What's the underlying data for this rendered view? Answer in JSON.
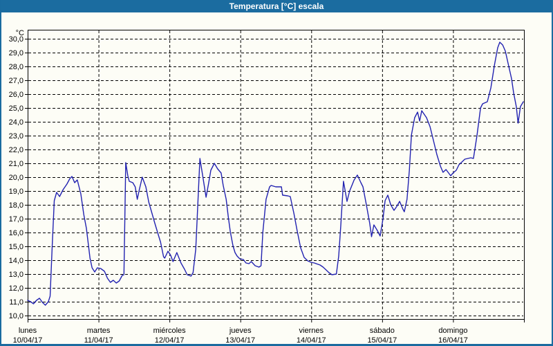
{
  "window": {
    "title": "Temperatura [°C] escala",
    "titlebar_color": "#1b6ca0",
    "frame_color": "#1a6b9f",
    "background_color": "#fdfdf6"
  },
  "chart_data": {
    "type": "line",
    "title": "Temperatura [°C] escala",
    "y_unit_label": "°C",
    "ylim": [
      10,
      30
    ],
    "y_step": 1,
    "y_ticks": [
      "30,0",
      "29,0",
      "28,0",
      "27,0",
      "26,0",
      "25,0",
      "24,0",
      "23,0",
      "22,0",
      "21,0",
      "20,0",
      "19,0",
      "18,0",
      "17,0",
      "16,0",
      "15,0",
      "14,0",
      "13,0",
      "12,0",
      "11,0",
      "10,0"
    ],
    "x_days": [
      {
        "name": "lunes",
        "date": "10/04/17"
      },
      {
        "name": "martes",
        "date": "11/04/17"
      },
      {
        "name": "miércoles",
        "date": "12/04/17"
      },
      {
        "name": "jueves",
        "date": "13/04/17"
      },
      {
        "name": "viernes",
        "date": "14/04/17"
      },
      {
        "name": "sábado",
        "date": "15/04/17"
      },
      {
        "name": "domingo",
        "date": "16/04/17"
      }
    ],
    "grid": "dashed",
    "grid_color": "#000000",
    "line_color": "#2121b0",
    "legend": "none",
    "x_axis_note": "hours since Monday 00:00, 7 days total (168 h)",
    "series": [
      {
        "name": "Temperatura",
        "points": [
          [
            0,
            11.1
          ],
          [
            1,
            11.0
          ],
          [
            2,
            10.85
          ],
          [
            3,
            11.1
          ],
          [
            4,
            11.25
          ],
          [
            5,
            10.95
          ],
          [
            6,
            10.75
          ],
          [
            7,
            11.0
          ],
          [
            7.6,
            11.4
          ],
          [
            8.3,
            15.0
          ],
          [
            9,
            18.3
          ],
          [
            9.8,
            18.9
          ],
          [
            10.8,
            18.6
          ],
          [
            12,
            19.1
          ],
          [
            13.3,
            19.5
          ],
          [
            14.3,
            19.9
          ],
          [
            15,
            20.05
          ],
          [
            15.9,
            19.6
          ],
          [
            16.8,
            19.8
          ],
          [
            18,
            18.8
          ],
          [
            19,
            17.3
          ],
          [
            19.9,
            16.3
          ],
          [
            21.1,
            14.15
          ],
          [
            21.8,
            13.45
          ],
          [
            22.7,
            13.15
          ],
          [
            23.6,
            13.45
          ],
          [
            24.7,
            13.4
          ],
          [
            26,
            13.2
          ],
          [
            27,
            12.7
          ],
          [
            28,
            12.4
          ],
          [
            29,
            12.55
          ],
          [
            30,
            12.35
          ],
          [
            31,
            12.5
          ],
          [
            32,
            12.9
          ],
          [
            32.6,
            12.95
          ],
          [
            33.2,
            21.05
          ],
          [
            33.9,
            20.1
          ],
          [
            34.4,
            19.7
          ],
          [
            35.6,
            19.6
          ],
          [
            36.4,
            19.3
          ],
          [
            37.1,
            18.4
          ],
          [
            37.7,
            19.0
          ],
          [
            38.8,
            20.0
          ],
          [
            40,
            19.3
          ],
          [
            41,
            18.2
          ],
          [
            42,
            17.45
          ],
          [
            43,
            16.7
          ],
          [
            44,
            16.0
          ],
          [
            45,
            15.3
          ],
          [
            46,
            14.25
          ],
          [
            46.4,
            14.15
          ],
          [
            47.5,
            14.65
          ],
          [
            48.4,
            14.35
          ],
          [
            49.2,
            13.9
          ],
          [
            50.5,
            14.55
          ],
          [
            51.9,
            13.8
          ],
          [
            53.1,
            13.35
          ],
          [
            54,
            12.95
          ],
          [
            55.3,
            12.85
          ],
          [
            56,
            13.1
          ],
          [
            56.9,
            14.8
          ],
          [
            58.3,
            21.35
          ],
          [
            59.1,
            20.3
          ],
          [
            60.4,
            18.55
          ],
          [
            61.2,
            19.5
          ],
          [
            62,
            20.5
          ],
          [
            63.2,
            21.0
          ],
          [
            64.3,
            20.6
          ],
          [
            65.5,
            20.3
          ],
          [
            66.2,
            19.4
          ],
          [
            67.2,
            18.4
          ],
          [
            67.9,
            17.15
          ],
          [
            68.6,
            16.05
          ],
          [
            69.5,
            15.05
          ],
          [
            70.2,
            14.55
          ],
          [
            70.9,
            14.3
          ],
          [
            71.8,
            14.1
          ],
          [
            73,
            14.05
          ],
          [
            73.9,
            13.8
          ],
          [
            74.9,
            13.75
          ],
          [
            75.7,
            13.9
          ],
          [
            77,
            13.6
          ],
          [
            78.3,
            13.5
          ],
          [
            79,
            13.6
          ],
          [
            79.6,
            16.0
          ],
          [
            80.7,
            18.4
          ],
          [
            81.9,
            19.3
          ],
          [
            82.4,
            19.4
          ],
          [
            84,
            19.3
          ],
          [
            85.9,
            19.3
          ],
          [
            86.3,
            18.7
          ],
          [
            88,
            18.65
          ],
          [
            88.9,
            18.6
          ],
          [
            90.1,
            17.4
          ],
          [
            91.2,
            16.15
          ],
          [
            92.4,
            14.9
          ],
          [
            93.6,
            14.2
          ],
          [
            94.8,
            13.95
          ],
          [
            95.9,
            13.85
          ],
          [
            97,
            13.8
          ],
          [
            99,
            13.65
          ],
          [
            100,
            13.5
          ],
          [
            101,
            13.3
          ],
          [
            102,
            13.1
          ],
          [
            103,
            12.95
          ],
          [
            104.5,
            13.0
          ],
          [
            105.3,
            14.3
          ],
          [
            106,
            16.5
          ],
          [
            106.9,
            19.7
          ],
          [
            108.1,
            18.25
          ],
          [
            109,
            19.0
          ],
          [
            110.5,
            19.8
          ],
          [
            111.6,
            20.15
          ],
          [
            112.8,
            19.6
          ],
          [
            113.5,
            19.3
          ],
          [
            114.7,
            17.95
          ],
          [
            115.8,
            16.65
          ],
          [
            116.4,
            15.7
          ],
          [
            117.2,
            16.55
          ],
          [
            118.2,
            16.2
          ],
          [
            119.3,
            15.75
          ],
          [
            120.3,
            17.0
          ],
          [
            121,
            18.3
          ],
          [
            121.9,
            18.7
          ],
          [
            122.9,
            18.0
          ],
          [
            124,
            17.6
          ],
          [
            125,
            17.9
          ],
          [
            125.9,
            18.25
          ],
          [
            127,
            17.7
          ],
          [
            127.5,
            17.5
          ],
          [
            128.4,
            18.4
          ],
          [
            129.2,
            20.5
          ],
          [
            129.9,
            23.05
          ],
          [
            131,
            24.3
          ],
          [
            132,
            24.7
          ],
          [
            132.7,
            24.05
          ],
          [
            133.4,
            24.8
          ],
          [
            135,
            24.3
          ],
          [
            136.2,
            23.65
          ],
          [
            137.3,
            22.7
          ],
          [
            138.5,
            21.65
          ],
          [
            139.7,
            20.8
          ],
          [
            140.6,
            20.35
          ],
          [
            141.6,
            20.55
          ],
          [
            143.2,
            20.1
          ],
          [
            144,
            20.3
          ],
          [
            145.1,
            20.5
          ],
          [
            146,
            20.9
          ],
          [
            147,
            21.1
          ],
          [
            148,
            21.3
          ],
          [
            149,
            21.35
          ],
          [
            150,
            21.4
          ],
          [
            150.9,
            21.35
          ],
          [
            152.1,
            23.0
          ],
          [
            153.3,
            25.0
          ],
          [
            154,
            25.3
          ],
          [
            155.6,
            25.45
          ],
          [
            156.8,
            26.45
          ],
          [
            158,
            28.1
          ],
          [
            159.1,
            29.35
          ],
          [
            159.8,
            29.75
          ],
          [
            160.8,
            29.55
          ],
          [
            161.7,
            29.1
          ],
          [
            162.6,
            28.25
          ],
          [
            163.8,
            27.1
          ],
          [
            164.5,
            26.1
          ],
          [
            165.4,
            25.1
          ],
          [
            166,
            23.9
          ],
          [
            166.8,
            25.1
          ],
          [
            167.8,
            25.45
          ]
        ]
      }
    ]
  }
}
